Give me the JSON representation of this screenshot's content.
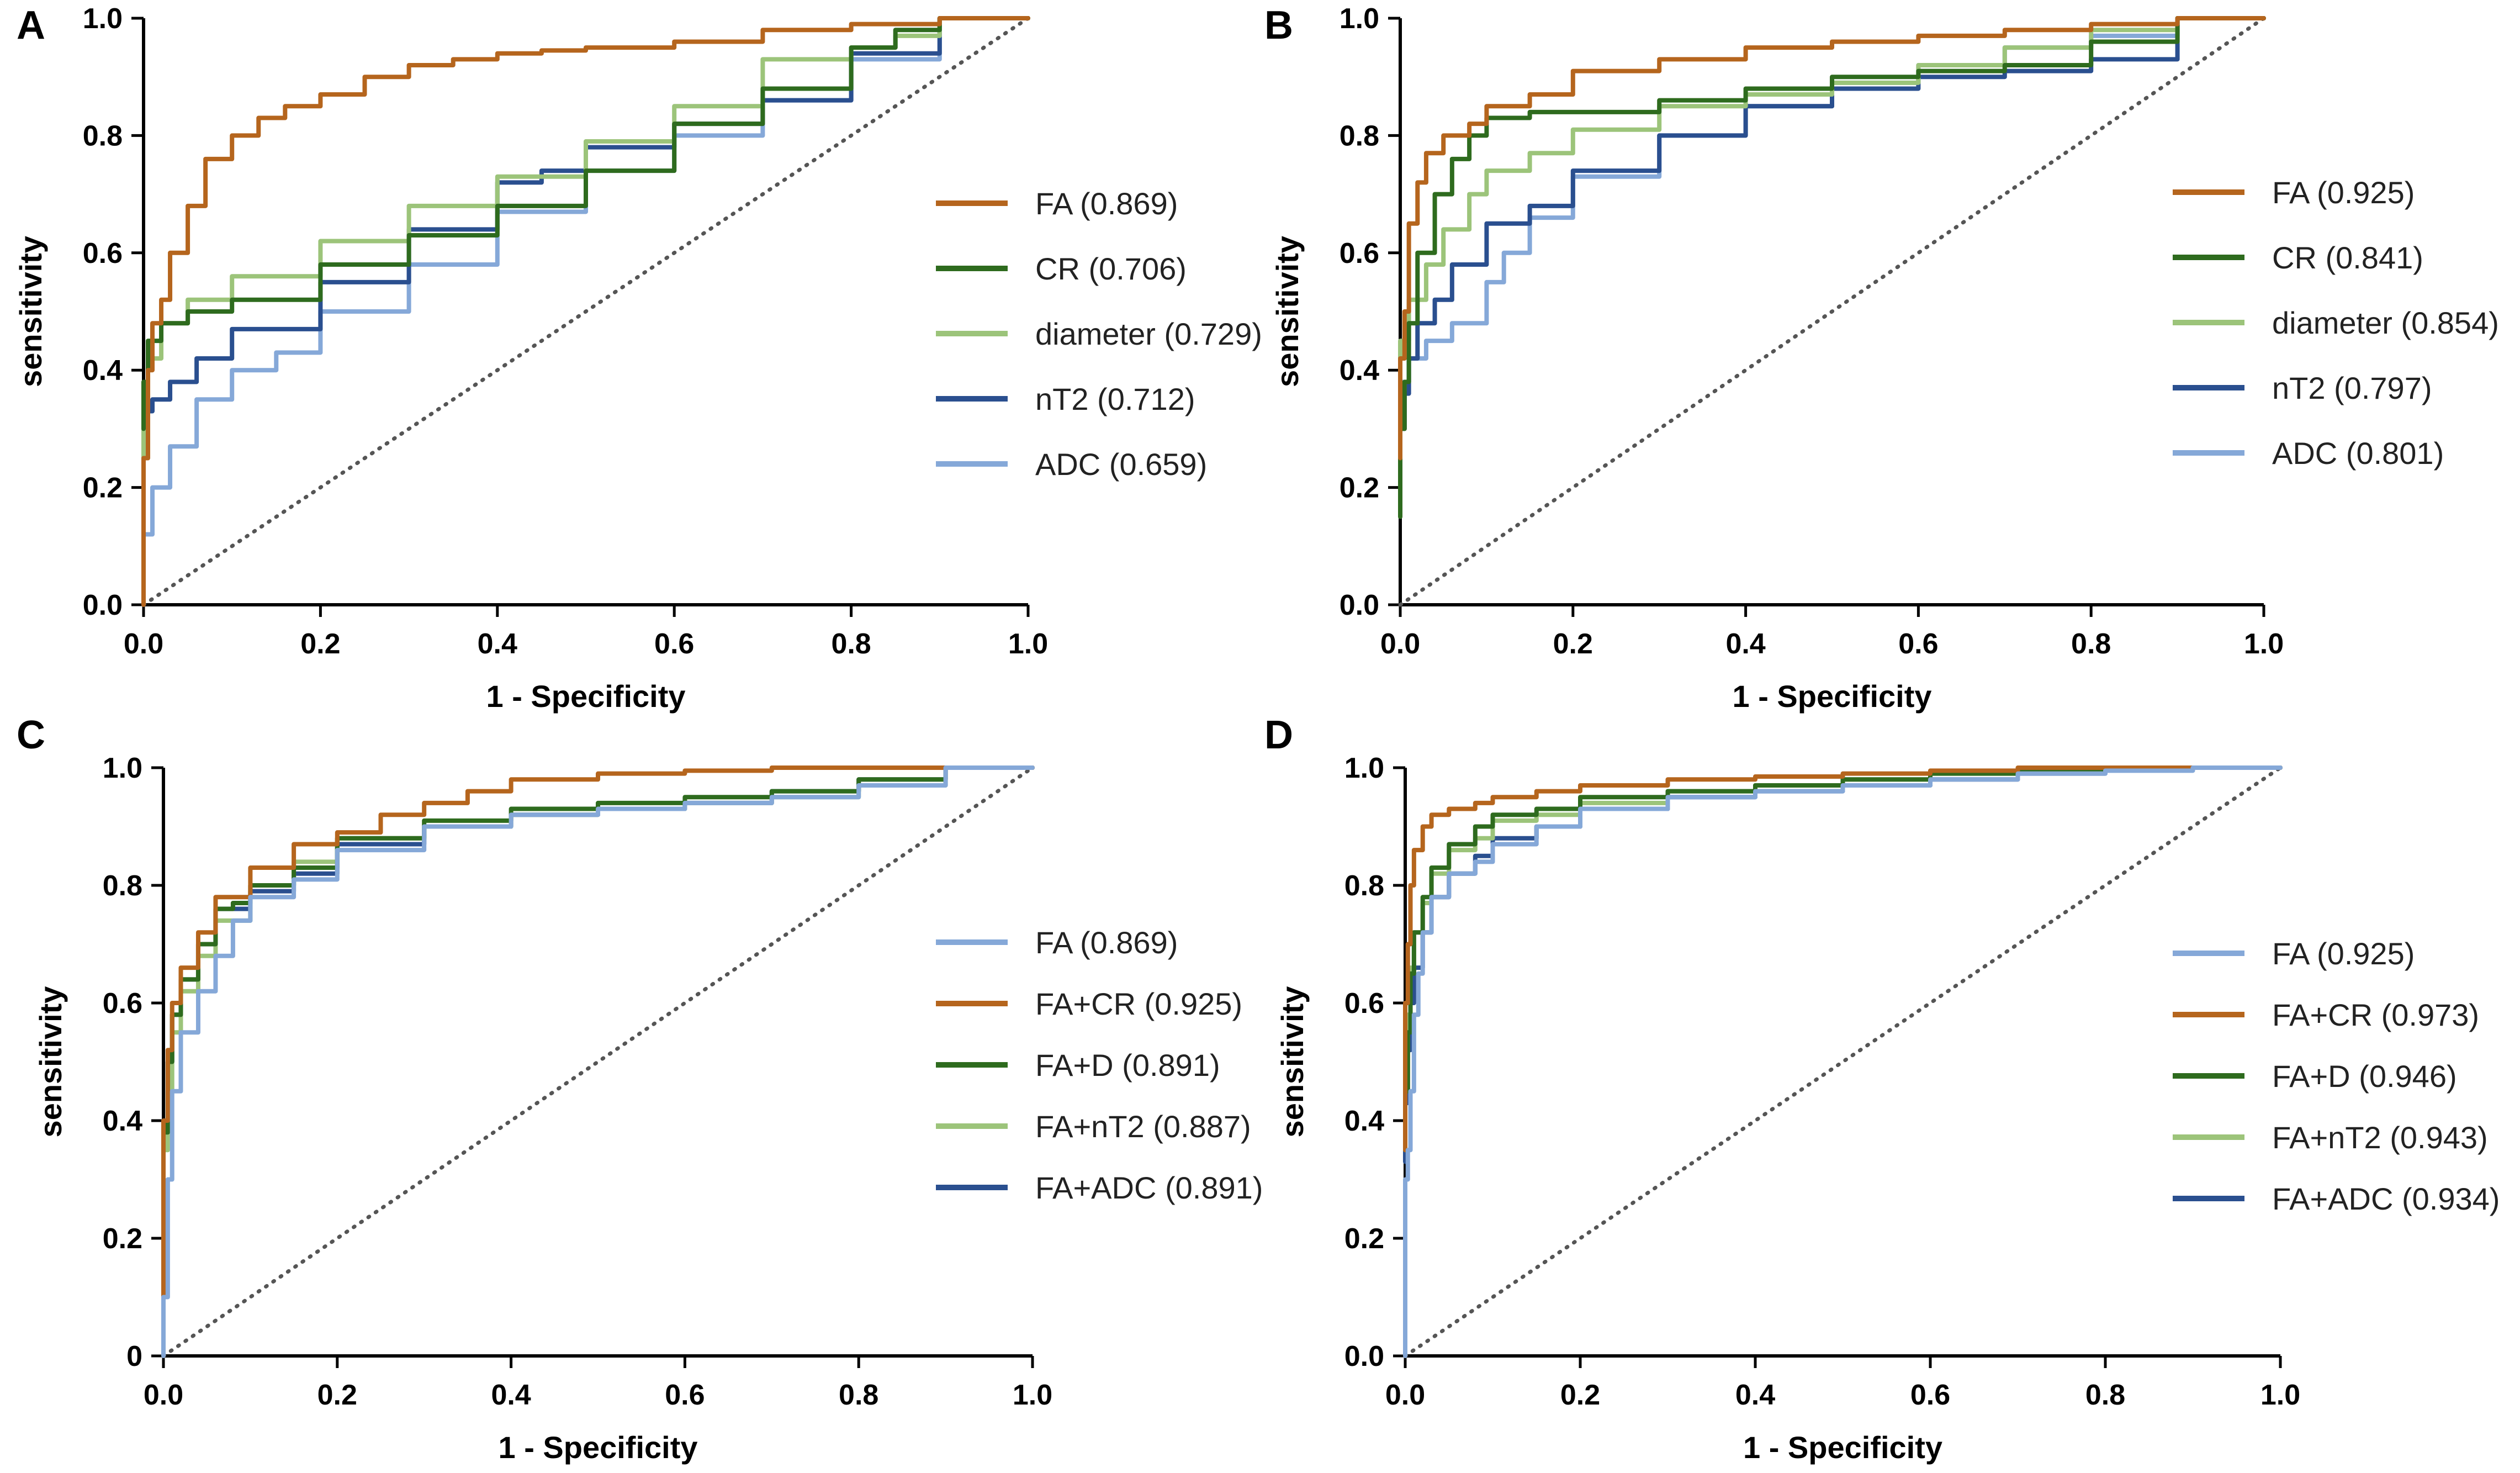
{
  "chart_data": [
    {
      "panel": "A",
      "type": "line",
      "xlabel": "1 - Specificity",
      "ylabel": "sensitivity",
      "xlim": [
        0,
        1
      ],
      "ylim": [
        0,
        1
      ],
      "xticks": [
        "0.0",
        "0.2",
        "0.4",
        "0.6",
        "0.8",
        "1.0"
      ],
      "yticks": [
        "0.0",
        "0.2",
        "0.4",
        "0.6",
        "0.8",
        "1.0"
      ],
      "series": [
        {
          "name": "FA",
          "auc": "(0.869)",
          "color": "#b5651d",
          "x": [
            0,
            0.005,
            0.01,
            0.02,
            0.03,
            0.05,
            0.07,
            0.1,
            0.13,
            0.16,
            0.2,
            0.25,
            0.3,
            0.35,
            0.4,
            0.45,
            0.5,
            0.6,
            0.7,
            0.8,
            0.9,
            1.0
          ],
          "y": [
            0,
            0.25,
            0.4,
            0.48,
            0.52,
            0.6,
            0.68,
            0.76,
            0.8,
            0.83,
            0.85,
            0.87,
            0.9,
            0.92,
            0.93,
            0.94,
            0.945,
            0.95,
            0.96,
            0.98,
            0.99,
            1.0
          ]
        },
        {
          "name": "CR",
          "auc": "(0.706)",
          "color": "#2e6b1e",
          "x": [
            0,
            0.005,
            0.02,
            0.05,
            0.1,
            0.2,
            0.3,
            0.4,
            0.5,
            0.6,
            0.7,
            0.8,
            0.85,
            0.9,
            1.0
          ],
          "y": [
            0.3,
            0.38,
            0.45,
            0.48,
            0.5,
            0.52,
            0.58,
            0.63,
            0.68,
            0.74,
            0.82,
            0.88,
            0.95,
            0.98,
            1.0
          ]
        },
        {
          "name": "diameter",
          "auc": "(0.729)",
          "color": "#9cc47a",
          "x": [
            0,
            0.005,
            0.02,
            0.05,
            0.1,
            0.2,
            0.3,
            0.4,
            0.5,
            0.6,
            0.7,
            0.8,
            0.85,
            0.9,
            1.0
          ],
          "y": [
            0.25,
            0.33,
            0.42,
            0.48,
            0.52,
            0.56,
            0.62,
            0.68,
            0.73,
            0.79,
            0.85,
            0.93,
            0.95,
            0.97,
            1.0
          ]
        },
        {
          "name": "nT2",
          "auc": "(0.712)",
          "color": "#2a4f8f",
          "x": [
            0,
            0.01,
            0.03,
            0.06,
            0.1,
            0.2,
            0.3,
            0.4,
            0.45,
            0.5,
            0.6,
            0.7,
            0.8,
            0.9,
            1.0
          ],
          "y": [
            0.3,
            0.33,
            0.35,
            0.38,
            0.42,
            0.47,
            0.55,
            0.64,
            0.72,
            0.74,
            0.78,
            0.82,
            0.86,
            0.94,
            1.0
          ]
        },
        {
          "name": "ADC",
          "auc": "(0.659)",
          "color": "#85a8d8",
          "x": [
            0,
            0.01,
            0.03,
            0.06,
            0.1,
            0.15,
            0.2,
            0.3,
            0.4,
            0.5,
            0.6,
            0.7,
            0.8,
            0.9,
            1.0
          ],
          "y": [
            0.05,
            0.12,
            0.2,
            0.27,
            0.35,
            0.4,
            0.43,
            0.5,
            0.58,
            0.67,
            0.74,
            0.8,
            0.86,
            0.93,
            1.0
          ]
        }
      ],
      "reference_line": "diagonal dotted"
    },
    {
      "panel": "B",
      "type": "line",
      "xlabel": "1 - Specificity",
      "ylabel": "sensitivity",
      "xlim": [
        0,
        1
      ],
      "ylim": [
        0,
        1
      ],
      "xticks": [
        "0.0",
        "0.2",
        "0.4",
        "0.6",
        "0.8",
        "1.0"
      ],
      "yticks": [
        "0.0",
        "0.2",
        "0.4",
        "0.6",
        "0.8",
        "1.0"
      ],
      "series": [
        {
          "name": "FA",
          "auc": "(0.925)",
          "color": "#b5651d",
          "x": [
            0,
            0.005,
            0.01,
            0.02,
            0.03,
            0.05,
            0.08,
            0.1,
            0.15,
            0.2,
            0.3,
            0.4,
            0.5,
            0.6,
            0.7,
            0.8,
            0.9,
            1.0
          ],
          "y": [
            0.25,
            0.42,
            0.5,
            0.65,
            0.72,
            0.77,
            0.8,
            0.82,
            0.85,
            0.87,
            0.91,
            0.93,
            0.95,
            0.96,
            0.97,
            0.98,
            0.99,
            1.0
          ]
        },
        {
          "name": "CR",
          "auc": "(0.841)",
          "color": "#2e6b1e",
          "x": [
            0,
            0.005,
            0.01,
            0.02,
            0.04,
            0.06,
            0.08,
            0.1,
            0.15,
            0.2,
            0.3,
            0.4,
            0.5,
            0.6,
            0.7,
            0.8,
            0.9,
            1.0
          ],
          "y": [
            0.15,
            0.3,
            0.38,
            0.48,
            0.6,
            0.7,
            0.76,
            0.8,
            0.83,
            0.84,
            0.84,
            0.86,
            0.88,
            0.9,
            0.91,
            0.92,
            0.96,
            1.0
          ]
        },
        {
          "name": "diameter",
          "auc": "(0.854)",
          "color": "#9cc47a",
          "x": [
            0,
            0.01,
            0.03,
            0.05,
            0.08,
            0.1,
            0.15,
            0.2,
            0.3,
            0.4,
            0.5,
            0.6,
            0.7,
            0.8,
            0.9,
            1.0
          ],
          "y": [
            0.3,
            0.45,
            0.52,
            0.58,
            0.64,
            0.7,
            0.74,
            0.77,
            0.81,
            0.85,
            0.87,
            0.89,
            0.92,
            0.95,
            0.98,
            1.0
          ]
        },
        {
          "name": "nT2",
          "auc": "(0.797)",
          "color": "#2a4f8f",
          "x": [
            0,
            0.005,
            0.01,
            0.02,
            0.04,
            0.06,
            0.1,
            0.15,
            0.2,
            0.3,
            0.4,
            0.5,
            0.6,
            0.7,
            0.8,
            0.9,
            1.0
          ],
          "y": [
            0.25,
            0.3,
            0.36,
            0.42,
            0.48,
            0.52,
            0.58,
            0.65,
            0.68,
            0.74,
            0.8,
            0.85,
            0.88,
            0.9,
            0.91,
            0.93,
            1.0
          ]
        },
        {
          "name": "ADC",
          "auc": "(0.801)",
          "color": "#85a8d8",
          "x": [
            0,
            0.01,
            0.03,
            0.06,
            0.1,
            0.12,
            0.15,
            0.2,
            0.3,
            0.4,
            0.5,
            0.6,
            0.7,
            0.8,
            0.9,
            1.0
          ],
          "y": [
            0.35,
            0.38,
            0.42,
            0.45,
            0.48,
            0.55,
            0.6,
            0.66,
            0.73,
            0.8,
            0.85,
            0.89,
            0.92,
            0.95,
            0.97,
            1.0
          ]
        }
      ],
      "reference_line": "diagonal dotted"
    },
    {
      "panel": "C",
      "type": "line",
      "xlabel": "1 - Specificity",
      "ylabel": "sensitivity",
      "xlim": [
        0,
        1
      ],
      "ylim": [
        0,
        1
      ],
      "xticks": [
        "0.0",
        "0.2",
        "0.4",
        "0.6",
        "0.8",
        "1.0"
      ],
      "yticks": [
        "0",
        "0.2",
        "0.4",
        "0.6",
        "0.8",
        "1.0"
      ],
      "series": [
        {
          "name": "FA",
          "auc": "(0.869)",
          "color": "#85a8d8",
          "x": [
            0,
            0.005,
            0.01,
            0.02,
            0.04,
            0.06,
            0.08,
            0.1,
            0.15,
            0.2,
            0.3,
            0.4,
            0.5,
            0.6,
            0.7,
            0.8,
            0.9,
            1.0
          ],
          "y": [
            0,
            0.1,
            0.3,
            0.45,
            0.55,
            0.62,
            0.68,
            0.74,
            0.78,
            0.81,
            0.86,
            0.9,
            0.92,
            0.93,
            0.94,
            0.95,
            0.97,
            1.0
          ]
        },
        {
          "name": "FA+CR",
          "auc": "(0.925)",
          "color": "#b5651d",
          "x": [
            0,
            0.005,
            0.01,
            0.02,
            0.04,
            0.06,
            0.1,
            0.15,
            0.2,
            0.25,
            0.3,
            0.35,
            0.4,
            0.5,
            0.6,
            0.7,
            0.8,
            0.9,
            1.0
          ],
          "y": [
            0.1,
            0.4,
            0.52,
            0.6,
            0.66,
            0.72,
            0.78,
            0.83,
            0.87,
            0.89,
            0.92,
            0.94,
            0.96,
            0.98,
            0.99,
            0.995,
            1.0,
            1.0,
            1.0
          ]
        },
        {
          "name": "FA+D",
          "auc": "(0.891)",
          "color": "#2e6b1e",
          "x": [
            0,
            0.005,
            0.01,
            0.02,
            0.04,
            0.06,
            0.08,
            0.1,
            0.15,
            0.2,
            0.3,
            0.4,
            0.5,
            0.6,
            0.7,
            0.8,
            0.9,
            1.0
          ],
          "y": [
            0.1,
            0.38,
            0.5,
            0.58,
            0.64,
            0.7,
            0.76,
            0.77,
            0.8,
            0.83,
            0.88,
            0.91,
            0.93,
            0.94,
            0.95,
            0.96,
            0.98,
            1.0
          ]
        },
        {
          "name": "FA+nT2",
          "auc": "(0.887)",
          "color": "#9cc47a",
          "x": [
            0,
            0.005,
            0.01,
            0.02,
            0.04,
            0.06,
            0.1,
            0.15,
            0.2,
            0.3,
            0.4,
            0.5,
            0.6,
            0.7,
            0.8,
            0.9,
            1.0
          ],
          "y": [
            0.1,
            0.35,
            0.45,
            0.55,
            0.62,
            0.68,
            0.74,
            0.8,
            0.84,
            0.88,
            0.9,
            0.92,
            0.93,
            0.94,
            0.95,
            0.97,
            1.0
          ]
        },
        {
          "name": "FA+ADC",
          "auc": "(0.891)",
          "color": "#2a4f8f",
          "x": [
            0,
            0.005,
            0.01,
            0.02,
            0.04,
            0.06,
            0.1,
            0.15,
            0.2,
            0.3,
            0.4,
            0.5,
            0.6,
            0.7,
            0.8,
            0.9,
            1.0
          ],
          "y": [
            0.1,
            0.4,
            0.5,
            0.58,
            0.64,
            0.7,
            0.76,
            0.79,
            0.82,
            0.87,
            0.9,
            0.92,
            0.93,
            0.94,
            0.96,
            0.98,
            1.0
          ]
        }
      ],
      "reference_line": "diagonal dotted"
    },
    {
      "panel": "D",
      "type": "line",
      "xlabel": "1 - Specificity",
      "ylabel": "sensitivity",
      "xlim": [
        0,
        1
      ],
      "ylim": [
        0,
        1
      ],
      "xticks": [
        "0.0",
        "0.2",
        "0.4",
        "0.6",
        "0.8",
        "1.0"
      ],
      "yticks": [
        "0.0",
        "0.2",
        "0.4",
        "0.6",
        "0.8",
        "1.0"
      ],
      "series": [
        {
          "name": "FA",
          "auc": "(0.925)",
          "color": "#85a8d8",
          "x": [
            0,
            0.003,
            0.006,
            0.01,
            0.015,
            0.02,
            0.03,
            0.05,
            0.08,
            0.1,
            0.15,
            0.2,
            0.3,
            0.4,
            0.5,
            0.6,
            0.7,
            0.8,
            0.9,
            1.0
          ],
          "y": [
            0,
            0.3,
            0.35,
            0.45,
            0.58,
            0.65,
            0.72,
            0.78,
            0.82,
            0.84,
            0.87,
            0.9,
            0.93,
            0.95,
            0.96,
            0.97,
            0.98,
            0.99,
            0.995,
            1.0
          ]
        },
        {
          "name": "FA+CR",
          "auc": "(0.973)",
          "color": "#b5651d",
          "x": [
            0,
            0.003,
            0.006,
            0.01,
            0.02,
            0.03,
            0.05,
            0.08,
            0.1,
            0.15,
            0.2,
            0.3,
            0.4,
            0.5,
            0.6,
            0.7,
            0.8,
            1.0
          ],
          "y": [
            0.35,
            0.6,
            0.7,
            0.8,
            0.86,
            0.9,
            0.92,
            0.93,
            0.94,
            0.95,
            0.96,
            0.97,
            0.98,
            0.985,
            0.99,
            0.995,
            1.0,
            1.0
          ]
        },
        {
          "name": "FA+D",
          "auc": "(0.946)",
          "color": "#2e6b1e",
          "x": [
            0,
            0.003,
            0.006,
            0.01,
            0.02,
            0.03,
            0.05,
            0.08,
            0.1,
            0.15,
            0.2,
            0.3,
            0.4,
            0.5,
            0.6,
            0.7,
            0.8,
            1.0
          ],
          "y": [
            0.35,
            0.45,
            0.55,
            0.65,
            0.72,
            0.78,
            0.83,
            0.87,
            0.9,
            0.92,
            0.93,
            0.95,
            0.96,
            0.97,
            0.98,
            0.99,
            0.995,
            1.0
          ]
        },
        {
          "name": "FA+nT2",
          "auc": "(0.943)",
          "color": "#9cc47a",
          "x": [
            0,
            0.003,
            0.006,
            0.01,
            0.02,
            0.03,
            0.05,
            0.08,
            0.1,
            0.15,
            0.2,
            0.3,
            0.4,
            0.5,
            0.6,
            0.7,
            0.8,
            1.0
          ],
          "y": [
            0.35,
            0.48,
            0.58,
            0.66,
            0.72,
            0.77,
            0.82,
            0.86,
            0.88,
            0.91,
            0.92,
            0.94,
            0.96,
            0.97,
            0.98,
            0.99,
            0.995,
            1.0
          ]
        },
        {
          "name": "FA+ADC",
          "auc": "(0.934)",
          "color": "#2a4f8f",
          "x": [
            0,
            0.003,
            0.006,
            0.01,
            0.02,
            0.03,
            0.05,
            0.08,
            0.1,
            0.15,
            0.2,
            0.3,
            0.4,
            0.5,
            0.6,
            0.7,
            0.8,
            1.0
          ],
          "y": [
            0.33,
            0.43,
            0.52,
            0.6,
            0.66,
            0.72,
            0.78,
            0.82,
            0.85,
            0.88,
            0.9,
            0.93,
            0.95,
            0.96,
            0.97,
            0.98,
            0.99,
            1.0
          ]
        }
      ],
      "reference_line": "diagonal dotted"
    }
  ]
}
